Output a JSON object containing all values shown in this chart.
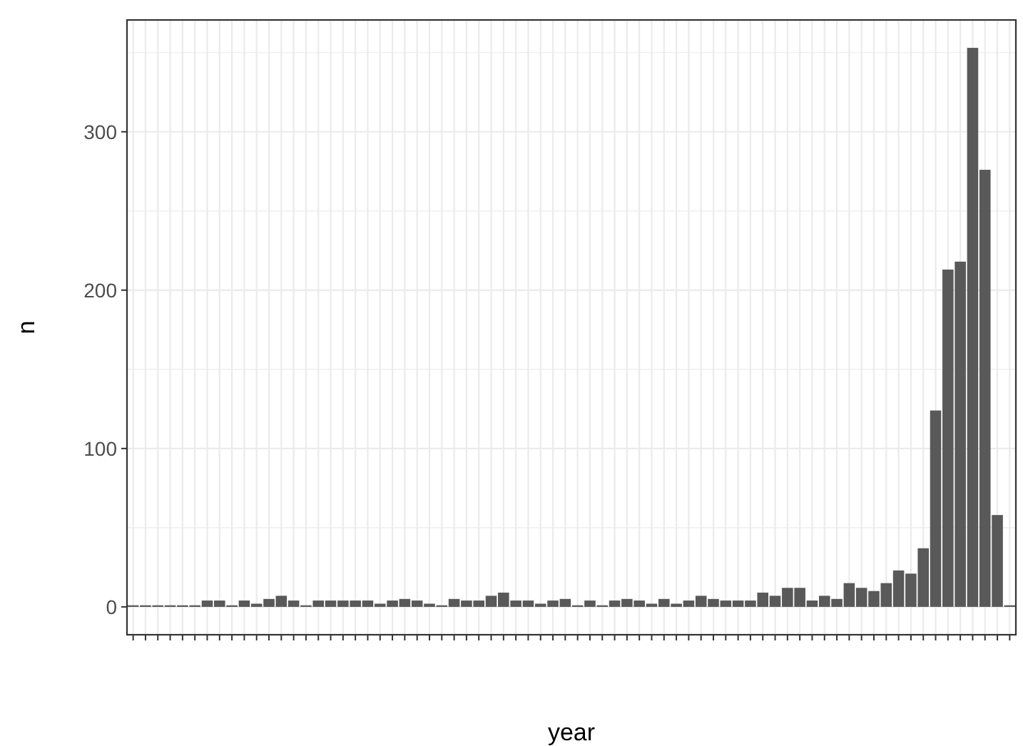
{
  "chart_data": {
    "type": "bar",
    "xlabel": "year",
    "ylabel": "n",
    "categories": [
      null,
      null,
      null,
      null,
      null,
      null,
      null,
      null,
      null,
      null,
      null,
      null,
      null,
      null,
      null,
      null,
      null,
      null,
      null,
      null,
      null,
      null,
      null,
      null,
      null,
      null,
      null,
      null,
      null,
      null,
      null,
      null,
      null,
      null,
      null,
      null,
      null,
      null,
      null,
      null,
      null,
      null,
      null,
      null,
      null,
      null,
      null,
      null,
      null,
      null,
      null,
      null,
      null,
      null,
      null,
      null,
      null,
      null,
      null,
      null,
      null,
      null,
      null,
      null,
      null,
      null,
      null,
      null,
      null,
      null,
      null,
      null
    ],
    "values": [
      1,
      1,
      1,
      1,
      1,
      1,
      4,
      4,
      1,
      4,
      2,
      5,
      7,
      4,
      1,
      4,
      4,
      4,
      4,
      4,
      2,
      4,
      5,
      4,
      2,
      1,
      5,
      4,
      4,
      7,
      9,
      4,
      4,
      2,
      4,
      5,
      1,
      4,
      1,
      4,
      5,
      4,
      2,
      5,
      2,
      4,
      7,
      5,
      4,
      4,
      4,
      9,
      7,
      12,
      12,
      4,
      7,
      5,
      15,
      12,
      10,
      15,
      23,
      21,
      37,
      124,
      213,
      218,
      353,
      276,
      58,
      1
    ],
    "color": "#595959",
    "ylim": [
      -17.6,
      370.6
    ],
    "yticks": [
      0,
      100,
      200,
      300
    ],
    "grid": true
  }
}
